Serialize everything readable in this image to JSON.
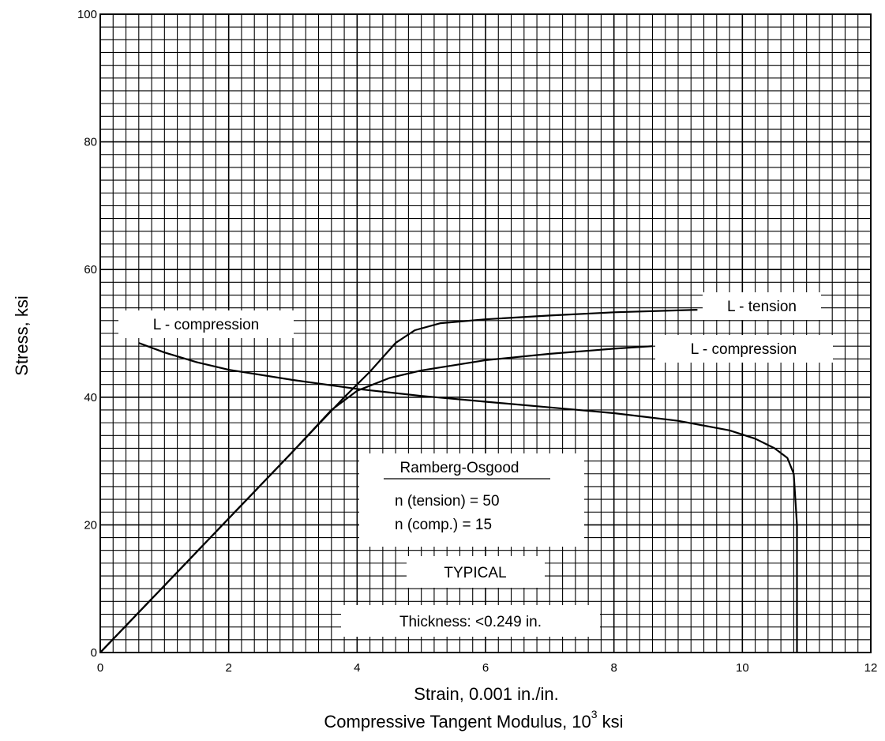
{
  "chart_data": {
    "type": "line",
    "xlabel": "Strain, 0.001 in./in.",
    "xlabel2": "Compressive Tangent Modulus, 10",
    "xlabel2_sup": "3",
    "xlabel2_unit": " ksi",
    "ylabel": "Stress, ksi",
    "xlim": [
      0,
      12
    ],
    "ylim": [
      0,
      100
    ],
    "grid": true,
    "x_ticks": [
      "0",
      "2",
      "4",
      "6",
      "8",
      "10",
      "12"
    ],
    "y_ticks": [
      "0",
      "20",
      "40",
      "60",
      "80",
      "100"
    ],
    "series": [
      {
        "name": "L - tension",
        "x": [
          0,
          1,
          2,
          3,
          3.8,
          4.2,
          4.6,
          4.9,
          5.3,
          6,
          7,
          8,
          9.3
        ],
        "y": [
          0,
          10.5,
          21,
          31.5,
          40,
          44,
          48.5,
          50.5,
          51.6,
          52.2,
          52.8,
          53.3,
          53.7
        ]
      },
      {
        "name": "L - compression",
        "x": [
          0,
          1,
          2,
          3,
          3.6,
          4,
          4.5,
          5,
          6,
          7,
          8,
          8.6
        ],
        "y": [
          0,
          10.5,
          21,
          31.5,
          38,
          41,
          43,
          44.2,
          45.8,
          46.8,
          47.6,
          48
        ]
      },
      {
        "name": "L - compression",
        "x": [
          0.6,
          1,
          1.5,
          2,
          3,
          4,
          5,
          6,
          7,
          8,
          9,
          9.8,
          10.2,
          10.5,
          10.7,
          10.8,
          10.85,
          10.85
        ],
        "y": [
          48.5,
          47,
          45.5,
          44.3,
          42.7,
          41.3,
          40.2,
          39.3,
          38.4,
          37.5,
          36.3,
          34.8,
          33.5,
          32,
          30.5,
          28,
          20,
          0
        ]
      }
    ],
    "annotations": {
      "tension_label": "L - tension",
      "compression_label": "L - compression",
      "tangent_label": "L - compression",
      "ro_title": "Ramberg-Osgood",
      "ro_tension": "n (tension) = 50",
      "ro_comp": "n (comp.) = 15",
      "typical": "TYPICAL",
      "thickness": "Thickness: <0.249 in."
    }
  }
}
